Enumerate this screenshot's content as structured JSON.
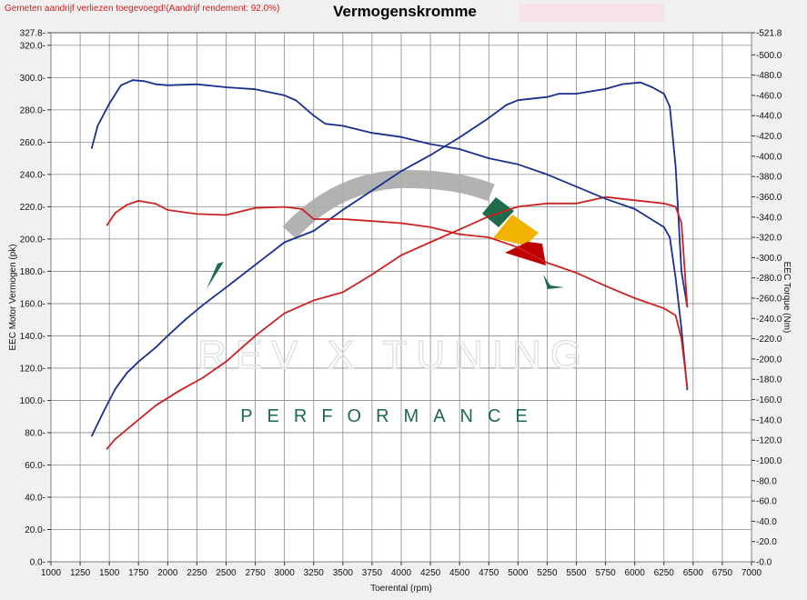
{
  "header": {
    "note": "Gemeten aandrijf verliezen toegevoegd!(Aandrijf rendement: 92.0%)",
    "title": "Vermogenskromme"
  },
  "watermark": {
    "brand": "REV X TUNING",
    "tagline": "PERFORMANCE"
  },
  "colors": {
    "power_series": "#1a2f8f",
    "torque_series": "#cc2222",
    "grid": "#8a8a8a",
    "plot_bg": "#ffffff",
    "brand_green": "#1c6b4b"
  },
  "chart_data": {
    "type": "line",
    "title": "Vermogenskromme",
    "xlabel": "Toerental (rpm)",
    "ylabel_left": "EEC Motor Vermogen (pk)",
    "ylabel_right": "EEC Torque (Nm)",
    "xlim": [
      1000,
      7000
    ],
    "ylim_left": [
      0,
      327.8
    ],
    "ylim_right": [
      0,
      521.8
    ],
    "x_ticks": [
      "1000",
      "1250",
      "1500",
      "1750",
      "2000",
      "2250",
      "2500",
      "2750",
      "3000",
      "3250",
      "3500",
      "3750",
      "4000",
      "4250",
      "4500",
      "4750",
      "5000",
      "5250",
      "5500",
      "5750",
      "6000",
      "6250",
      "6500",
      "6750",
      "7000"
    ],
    "left_ticks": [
      "0.0",
      "20.0",
      "40.0",
      "60.0",
      "80.0",
      "100.0",
      "120.0",
      "140.0",
      "160.0",
      "180.0",
      "200.0",
      "220.0",
      "240.0",
      "260.0",
      "280.0",
      "300.0",
      "320.0",
      "327.8"
    ],
    "right_ticks": [
      "0.0",
      "20.0",
      "40.0",
      "60.0",
      "80.0",
      "100.0",
      "120.0",
      "140.0",
      "160.0",
      "180.0",
      "200.0",
      "220.0",
      "240.0",
      "260.0",
      "280.0",
      "300.0",
      "320.0",
      "340.0",
      "360.0",
      "380.0",
      "400.0",
      "420.0",
      "440.0",
      "460.0",
      "480.0",
      "500.0",
      "521.8"
    ],
    "grid": true,
    "series": [
      {
        "axis": "left",
        "values": [
          [
            1350,
            78
          ],
          [
            1450,
            93
          ],
          [
            1550,
            107
          ],
          [
            1650,
            117
          ],
          [
            1750,
            124
          ],
          [
            1900,
            133
          ],
          [
            2000,
            140
          ],
          [
            2150,
            150
          ],
          [
            2300,
            159
          ],
          [
            2500,
            170
          ],
          [
            2750,
            184
          ],
          [
            3000,
            198
          ],
          [
            3250,
            205
          ],
          [
            3500,
            218
          ],
          [
            3750,
            230
          ],
          [
            4000,
            242
          ],
          [
            4250,
            252
          ],
          [
            4500,
            263
          ],
          [
            4750,
            275
          ],
          [
            4900,
            283
          ],
          [
            5000,
            286
          ],
          [
            5250,
            288
          ],
          [
            5350,
            290
          ],
          [
            5500,
            290
          ],
          [
            5750,
            293
          ],
          [
            5900,
            296
          ],
          [
            6050,
            297
          ],
          [
            6150,
            294
          ],
          [
            6250,
            290
          ],
          [
            6300,
            282
          ],
          [
            6350,
            245
          ],
          [
            6400,
            180
          ],
          [
            6450,
            158
          ]
        ]
      },
      {
        "axis": "left",
        "values": [
          [
            1480,
            70
          ],
          [
            1550,
            76
          ],
          [
            1700,
            85
          ],
          [
            1900,
            97
          ],
          [
            2100,
            106
          ],
          [
            2300,
            114
          ],
          [
            2500,
            124
          ],
          [
            2750,
            140
          ],
          [
            3000,
            154
          ],
          [
            3250,
            162
          ],
          [
            3500,
            167
          ],
          [
            3750,
            178
          ],
          [
            4000,
            190
          ],
          [
            4250,
            198
          ],
          [
            4500,
            206
          ],
          [
            4750,
            214
          ],
          [
            5000,
            220
          ],
          [
            5250,
            222
          ],
          [
            5500,
            222
          ],
          [
            5750,
            226
          ],
          [
            6000,
            224
          ],
          [
            6250,
            222
          ],
          [
            6350,
            220
          ],
          [
            6400,
            210
          ],
          [
            6450,
            158
          ]
        ]
      },
      {
        "axis": "right",
        "values": [
          [
            1350,
            408
          ],
          [
            1400,
            430
          ],
          [
            1500,
            452
          ],
          [
            1600,
            470
          ],
          [
            1700,
            475
          ],
          [
            1800,
            474
          ],
          [
            1900,
            471
          ],
          [
            2000,
            470
          ],
          [
            2250,
            471
          ],
          [
            2500,
            468
          ],
          [
            2750,
            466
          ],
          [
            3000,
            460
          ],
          [
            3100,
            455
          ],
          [
            3250,
            440
          ],
          [
            3350,
            432
          ],
          [
            3500,
            430
          ],
          [
            3750,
            423
          ],
          [
            4000,
            419
          ],
          [
            4250,
            412
          ],
          [
            4500,
            407
          ],
          [
            4750,
            398
          ],
          [
            5000,
            392
          ],
          [
            5250,
            382
          ],
          [
            5500,
            370
          ],
          [
            5750,
            358
          ],
          [
            6000,
            348
          ],
          [
            6250,
            330
          ],
          [
            6300,
            320
          ],
          [
            6350,
            280
          ],
          [
            6400,
            230
          ],
          [
            6450,
            170
          ]
        ]
      },
      {
        "axis": "right",
        "values": [
          [
            1480,
            332
          ],
          [
            1550,
            344
          ],
          [
            1650,
            352
          ],
          [
            1750,
            356
          ],
          [
            1900,
            353
          ],
          [
            2000,
            347
          ],
          [
            2250,
            343
          ],
          [
            2500,
            342
          ],
          [
            2750,
            349
          ],
          [
            3000,
            350
          ],
          [
            3150,
            348
          ],
          [
            3250,
            338
          ],
          [
            3500,
            338
          ],
          [
            3750,
            336
          ],
          [
            4000,
            334
          ],
          [
            4250,
            330
          ],
          [
            4500,
            323
          ],
          [
            4750,
            320
          ],
          [
            5000,
            310
          ],
          [
            5250,
            295
          ],
          [
            5500,
            285
          ],
          [
            5750,
            272
          ],
          [
            6000,
            260
          ],
          [
            6250,
            250
          ],
          [
            6350,
            243
          ],
          [
            6400,
            220
          ],
          [
            6450,
            172
          ]
        ]
      }
    ]
  }
}
